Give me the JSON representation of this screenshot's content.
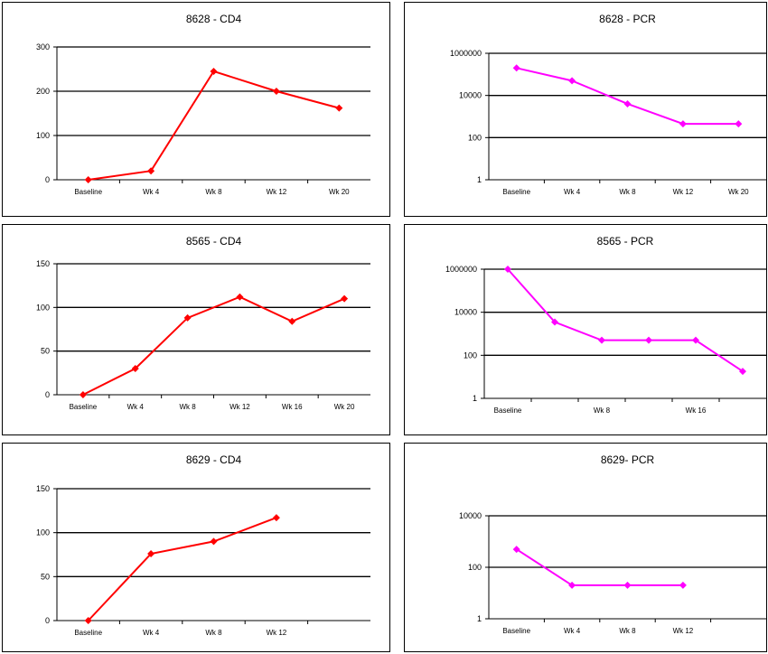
{
  "colors": {
    "cd4": "#ff0000",
    "pcr": "#ff00ff",
    "axis": "#000000"
  },
  "chart_data": [
    {
      "type": "line",
      "title": "8628 - CD4",
      "scale": "linear",
      "ylim": [
        0,
        300
      ],
      "yticks": [
        "0",
        "100",
        "200",
        "300"
      ],
      "ytick_values": [
        0,
        100,
        200,
        300
      ],
      "categories": [
        "Baseline",
        "Wk 4",
        "Wk 8",
        "Wk 12",
        "Wk 20"
      ],
      "x": [
        0,
        1,
        2,
        3,
        4
      ],
      "values": [
        0,
        20,
        245,
        200,
        162
      ],
      "color": "#ff0000",
      "grid": "horizontal"
    },
    {
      "type": "line",
      "title": "8628 - PCR",
      "scale": "log",
      "ylim": [
        1,
        1000000
      ],
      "yticks": [
        "1",
        "100",
        "10000",
        "1000000"
      ],
      "ytick_values": [
        1,
        100,
        10000,
        1000000
      ],
      "categories": [
        "Baseline",
        "Wk 4",
        "Wk 8",
        "Wk 12",
        "Wk 20"
      ],
      "x": [
        0,
        1,
        2,
        3,
        4
      ],
      "values": [
        200000,
        50000,
        4000,
        450,
        450
      ],
      "color": "#ff00ff",
      "grid": "horizontal"
    },
    {
      "type": "line",
      "title": "8565 - CD4",
      "scale": "linear",
      "ylim": [
        0,
        150
      ],
      "yticks": [
        "0",
        "50",
        "100",
        "150"
      ],
      "ytick_values": [
        0,
        50,
        100,
        150
      ],
      "categories": [
        "Baseline",
        "Wk 4",
        "Wk 8",
        "Wk 12",
        "Wk 16",
        "Wk 20"
      ],
      "x": [
        0,
        1,
        2,
        3,
        4,
        5
      ],
      "values": [
        0,
        30,
        88,
        112,
        84,
        110
      ],
      "color": "#ff0000",
      "grid": "horizontal"
    },
    {
      "type": "line",
      "title": "8565 - PCR",
      "scale": "log",
      "ylim": [
        1,
        1000000
      ],
      "yticks": [
        "1",
        "100",
        "10000",
        "1000000"
      ],
      "ytick_values": [
        1,
        100,
        10000,
        1000000
      ],
      "categories": [
        "Baseline",
        "",
        "Wk 8",
        "",
        "Wk 16",
        ""
      ],
      "x": [
        0,
        1,
        2,
        3,
        4,
        5
      ],
      "values": [
        1000000,
        3500,
        500,
        500,
        500,
        18
      ],
      "color": "#ff00ff",
      "grid": "horizontal"
    },
    {
      "type": "line",
      "title": "8629 - CD4",
      "scale": "linear",
      "ylim": [
        0,
        150
      ],
      "yticks": [
        "0",
        "50",
        "100",
        "150"
      ],
      "ytick_values": [
        0,
        50,
        100,
        150
      ],
      "categories": [
        "Baseline",
        "Wk 4",
        "Wk 8",
        "Wk 12",
        ""
      ],
      "x": [
        0,
        1,
        2,
        3
      ],
      "values": [
        0,
        76,
        90,
        117
      ],
      "color": "#ff0000",
      "grid": "horizontal"
    },
    {
      "type": "line",
      "title": "8629- PCR",
      "scale": "log",
      "ylim": [
        1,
        10000
      ],
      "yticks": [
        "1",
        "100",
        "10000"
      ],
      "ytick_values": [
        1,
        100,
        10000
      ],
      "categories": [
        "Baseline",
        "Wk 4",
        "Wk 8",
        "Wk 12",
        ""
      ],
      "x": [
        0,
        1,
        2,
        3
      ],
      "values": [
        500,
        20,
        20,
        20
      ],
      "color": "#ff00ff",
      "grid": "horizontal"
    }
  ]
}
